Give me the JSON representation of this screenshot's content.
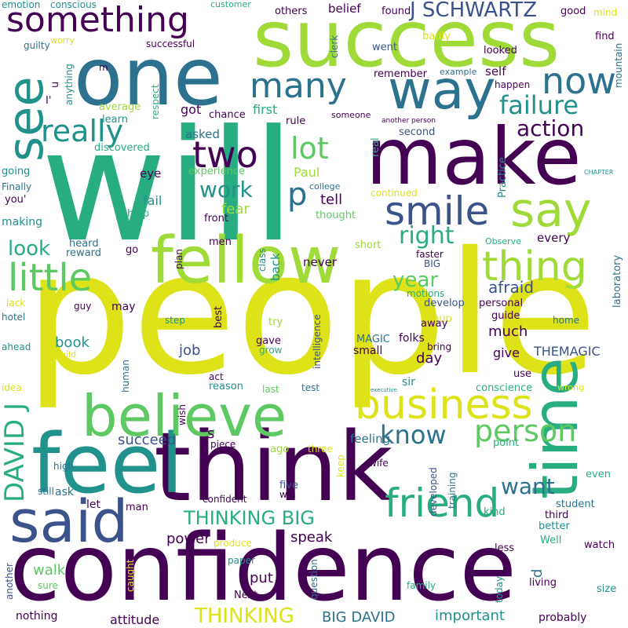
{
  "palette": {
    "purple": "#440154",
    "indigo": "#3b528b",
    "blue": "#2c728e",
    "teal": "#21918c",
    "green": "#27ad81",
    "mint": "#5ec962",
    "lime": "#a0da39",
    "yellow": "#dde318"
  },
  "words": [
    {
      "text": "people",
      "color": "#dde318"
    },
    {
      "text": "will",
      "color": "#27ad81"
    },
    {
      "text": "confidence",
      "color": "#440154"
    },
    {
      "text": "think",
      "color": "#440154"
    },
    {
      "text": "success",
      "color": "#a0da39"
    },
    {
      "text": "feel",
      "color": "#21918c"
    },
    {
      "text": "make",
      "color": "#440154"
    },
    {
      "text": "one",
      "color": "#2c728e"
    },
    {
      "text": "fellow",
      "color": "#a0da39"
    },
    {
      "text": "way",
      "color": "#2c728e"
    },
    {
      "text": "believe",
      "color": "#5ec962"
    },
    {
      "text": "time",
      "color": "#27ad81"
    },
    {
      "text": "said",
      "color": "#3b528b"
    },
    {
      "text": "say",
      "color": "#a0da39"
    },
    {
      "text": "see",
      "color": "#21918c"
    },
    {
      "text": "business",
      "color": "#dde318"
    },
    {
      "text": "something",
      "color": "#440154"
    },
    {
      "text": "friend",
      "color": "#27ad81"
    },
    {
      "text": "little",
      "color": "#5ec962"
    },
    {
      "text": "smile",
      "color": "#3b528b"
    },
    {
      "text": "thing",
      "color": "#a0da39"
    },
    {
      "text": "now",
      "color": "#2c728e"
    },
    {
      "text": "many",
      "color": "#2c728e"
    },
    {
      "text": "person",
      "color": "#5ec962"
    },
    {
      "text": "two",
      "color": "#440154"
    },
    {
      "text": "p",
      "color": "#2c728e"
    },
    {
      "text": "really",
      "color": "#21918c"
    },
    {
      "text": "lot",
      "color": "#5ec962"
    },
    {
      "text": "failure",
      "color": "#21918c"
    },
    {
      "text": "know",
      "color": "#2c728e"
    },
    {
      "text": "look",
      "color": "#27ad81"
    },
    {
      "text": "right",
      "color": "#27ad81"
    },
    {
      "text": "action",
      "color": "#440154"
    },
    {
      "text": "want",
      "color": "#2c728e"
    },
    {
      "text": "DAVID J",
      "color": "#27ad81"
    },
    {
      "text": "work",
      "color": "#21918c"
    },
    {
      "text": "J SCHWARTZ",
      "color": "#3b528b"
    },
    {
      "text": "THINKING BIG",
      "color": "#27ad81"
    },
    {
      "text": "year",
      "color": "#5ec962"
    },
    {
      "text": "THINKING",
      "color": "#dde318"
    },
    {
      "text": "speak",
      "color": "#440154"
    },
    {
      "text": "afraid",
      "color": "#3b528b"
    },
    {
      "text": "BIG DAVID",
      "color": "#2c728e"
    },
    {
      "text": "important",
      "color": "#21918c"
    },
    {
      "text": "attitude",
      "color": "#440154"
    },
    {
      "text": "succeed",
      "color": "#3b528b"
    },
    {
      "text": "power",
      "color": "#440154"
    },
    {
      "text": "walk",
      "color": "#5ec962"
    },
    {
      "text": "much",
      "color": "#440154"
    },
    {
      "text": "feeling",
      "color": "#2c728e"
    },
    {
      "text": "tell",
      "color": "#440154"
    },
    {
      "text": "fear",
      "color": "#a0da39"
    },
    {
      "text": "Paul",
      "color": "#a0da39"
    },
    {
      "text": "put",
      "color": "#440154"
    },
    {
      "text": "day",
      "color": "#440154"
    },
    {
      "text": "book",
      "color": "#21918c"
    },
    {
      "text": "job",
      "color": "#3b528b"
    },
    {
      "text": "give",
      "color": "#440154"
    },
    {
      "text": "THEMAGIC",
      "color": "#3b528b"
    },
    {
      "text": "got",
      "color": "#440154"
    },
    {
      "text": "eye",
      "color": "#440154"
    },
    {
      "text": "fail",
      "color": "#21918c"
    },
    {
      "text": "asked",
      "color": "#2c728e"
    },
    {
      "text": "first",
      "color": "#27ad81"
    },
    {
      "text": "never",
      "color": "#440154"
    },
    {
      "text": "self",
      "color": "#440154"
    },
    {
      "text": "belief",
      "color": "#440154"
    },
    {
      "text": "went",
      "color": "#3b528b"
    },
    {
      "text": "remember",
      "color": "#440154"
    },
    {
      "text": "second",
      "color": "#3b528b"
    },
    {
      "text": "rule",
      "color": "#440154"
    },
    {
      "text": "someone",
      "color": "#440154"
    },
    {
      "text": "chance",
      "color": "#440154"
    },
    {
      "text": "learn",
      "color": "#21918c"
    },
    {
      "text": "average",
      "color": "#a0da39"
    },
    {
      "text": "respect",
      "color": "#27ad81"
    },
    {
      "text": "discovered",
      "color": "#27ad81"
    },
    {
      "text": "experience",
      "color": "#5ec962"
    },
    {
      "text": "college",
      "color": "#2c728e"
    },
    {
      "text": "Practice",
      "color": "#21918c"
    },
    {
      "text": "continued",
      "color": "#dde318"
    },
    {
      "text": "going",
      "color": "#21918c"
    },
    {
      "text": "Finally",
      "color": "#2c728e"
    },
    {
      "text": "you'",
      "color": "#440154"
    },
    {
      "text": "making",
      "color": "#21918c"
    },
    {
      "text": "help",
      "color": "#27ad81"
    },
    {
      "text": "heard",
      "color": "#2c728e"
    },
    {
      "text": "reward",
      "color": "#2c728e"
    },
    {
      "text": "go",
      "color": "#440154"
    },
    {
      "text": "men",
      "color": "#440154"
    },
    {
      "text": "front",
      "color": "#440154"
    },
    {
      "text": "thought",
      "color": "#5ec962"
    },
    {
      "text": "plan",
      "color": "#440154"
    },
    {
      "text": "class",
      "color": "#21918c"
    },
    {
      "text": "back",
      "color": "#21918c"
    },
    {
      "text": "BIG",
      "color": "#3b528b"
    },
    {
      "text": "motions",
      "color": "#27ad81"
    },
    {
      "text": "develop",
      "color": "#3b528b"
    },
    {
      "text": "faster",
      "color": "#440154"
    },
    {
      "text": "short",
      "color": "#a0da39"
    },
    {
      "text": "Observe",
      "color": "#27ad81"
    },
    {
      "text": "every",
      "color": "#440154"
    },
    {
      "text": "personal",
      "color": "#440154"
    },
    {
      "text": "guide",
      "color": "#440154"
    },
    {
      "text": "group",
      "color": "#dde318"
    },
    {
      "text": "home",
      "color": "#2c728e"
    },
    {
      "text": "laboratory",
      "color": "#2c728e"
    },
    {
      "text": "real",
      "color": "#27ad81"
    },
    {
      "text": "emotion",
      "color": "#21918c"
    },
    {
      "text": "conscious",
      "color": "#21918c"
    },
    {
      "text": "customer",
      "color": "#27ad81"
    },
    {
      "text": "others",
      "color": "#440154"
    },
    {
      "text": "found",
      "color": "#440154"
    },
    {
      "text": "good",
      "color": "#440154"
    },
    {
      "text": "mind",
      "color": "#dde318"
    },
    {
      "text": "find",
      "color": "#440154"
    },
    {
      "text": "mountain",
      "color": "#2c728e"
    },
    {
      "text": "guilty",
      "color": "#2c728e"
    },
    {
      "text": "worry",
      "color": "#dde318"
    },
    {
      "text": "successful",
      "color": "#440154"
    },
    {
      "text": "clerk",
      "color": "#2c728e"
    },
    {
      "text": "badly",
      "color": "#dde318"
    },
    {
      "text": "looked",
      "color": "#440154"
    },
    {
      "text": "anything",
      "color": "#21918c"
    },
    {
      "text": "u",
      "color": "#440154"
    },
    {
      "text": "I'",
      "color": "#440154"
    },
    {
      "text": "m",
      "color": "#440154"
    },
    {
      "text": "example",
      "color": "#2c728e"
    },
    {
      "text": "happen",
      "color": "#440154"
    },
    {
      "text": "another person",
      "color": "#440154"
    },
    {
      "text": "CHAPTER",
      "color": "#21918c"
    },
    {
      "text": "lack",
      "color": "#dde318"
    },
    {
      "text": "hotel",
      "color": "#2c728e"
    },
    {
      "text": "may",
      "color": "#440154"
    },
    {
      "text": "guy",
      "color": "#440154"
    },
    {
      "text": "step",
      "color": "#21918c"
    },
    {
      "text": "best",
      "color": "#440154"
    },
    {
      "text": "try",
      "color": "#a0da39"
    },
    {
      "text": "intelligence",
      "color": "#3b528b"
    },
    {
      "text": "ahead",
      "color": "#21918c"
    },
    {
      "text": "build",
      "color": "#dde318"
    },
    {
      "text": "MAGIC",
      "color": "#2c728e"
    },
    {
      "text": "gave",
      "color": "#440154"
    },
    {
      "text": "grow",
      "color": "#27ad81"
    },
    {
      "text": "small",
      "color": "#440154"
    },
    {
      "text": "folks",
      "color": "#440154"
    },
    {
      "text": "bring",
      "color": "#440154"
    },
    {
      "text": "away",
      "color": "#440154"
    },
    {
      "text": "use",
      "color": "#440154"
    },
    {
      "text": "human",
      "color": "#2c728e"
    },
    {
      "text": "act",
      "color": "#440154"
    },
    {
      "text": "reason",
      "color": "#21918c"
    },
    {
      "text": "last",
      "color": "#5ec962"
    },
    {
      "text": "test",
      "color": "#2c728e"
    },
    {
      "text": "sir",
      "color": "#21918c"
    },
    {
      "text": "conscience",
      "color": "#27ad81"
    },
    {
      "text": "wrong",
      "color": "#dde318"
    },
    {
      "text": "idea",
      "color": "#dde318"
    },
    {
      "text": "executive",
      "color": "#21918c"
    },
    {
      "text": "wish",
      "color": "#440154"
    },
    {
      "text": "s",
      "color": "#440154"
    },
    {
      "text": "piece",
      "color": "#440154"
    },
    {
      "text": "ago",
      "color": "#a0da39"
    },
    {
      "text": "three",
      "color": "#dde318"
    },
    {
      "text": "point",
      "color": "#27ad81"
    },
    {
      "text": "even",
      "color": "#27ad81"
    },
    {
      "text": "high",
      "color": "#2c728e"
    },
    {
      "text": "keep",
      "color": "#dde318"
    },
    {
      "text": "five",
      "color": "#3b528b"
    },
    {
      "text": "win",
      "color": "#440154"
    },
    {
      "text": "wife",
      "color": "#440154"
    },
    {
      "text": "still",
      "color": "#2c728e"
    },
    {
      "text": "ask",
      "color": "#2c728e"
    },
    {
      "text": "let",
      "color": "#440154"
    },
    {
      "text": "confident",
      "color": "#440154"
    },
    {
      "text": "man",
      "color": "#440154"
    },
    {
      "text": "developed",
      "color": "#3b528b"
    },
    {
      "text": "training",
      "color": "#2c728e"
    },
    {
      "text": "kind",
      "color": "#27ad81"
    },
    {
      "text": "third",
      "color": "#440154"
    },
    {
      "text": "student",
      "color": "#2c728e"
    },
    {
      "text": "better",
      "color": "#21918c"
    },
    {
      "text": "Well",
      "color": "#27ad81"
    },
    {
      "text": "less",
      "color": "#440154"
    },
    {
      "text": "watch",
      "color": "#440154"
    },
    {
      "text": "produce",
      "color": "#dde318"
    },
    {
      "text": "caught",
      "color": "#dde318"
    },
    {
      "text": "paper",
      "color": "#21918c"
    },
    {
      "text": "question",
      "color": "#2c728e"
    },
    {
      "text": "d",
      "color": "#2c728e"
    },
    {
      "text": "living",
      "color": "#440154"
    },
    {
      "text": "another",
      "color": "#3b528b"
    },
    {
      "text": "sure",
      "color": "#5ec962"
    },
    {
      "text": "Next",
      "color": "#440154"
    },
    {
      "text": "family",
      "color": "#27ad81"
    },
    {
      "text": "today",
      "color": "#21918c"
    },
    {
      "text": "size",
      "color": "#21918c"
    },
    {
      "text": "nothing",
      "color": "#440154"
    },
    {
      "text": "probably",
      "color": "#440154"
    }
  ]
}
